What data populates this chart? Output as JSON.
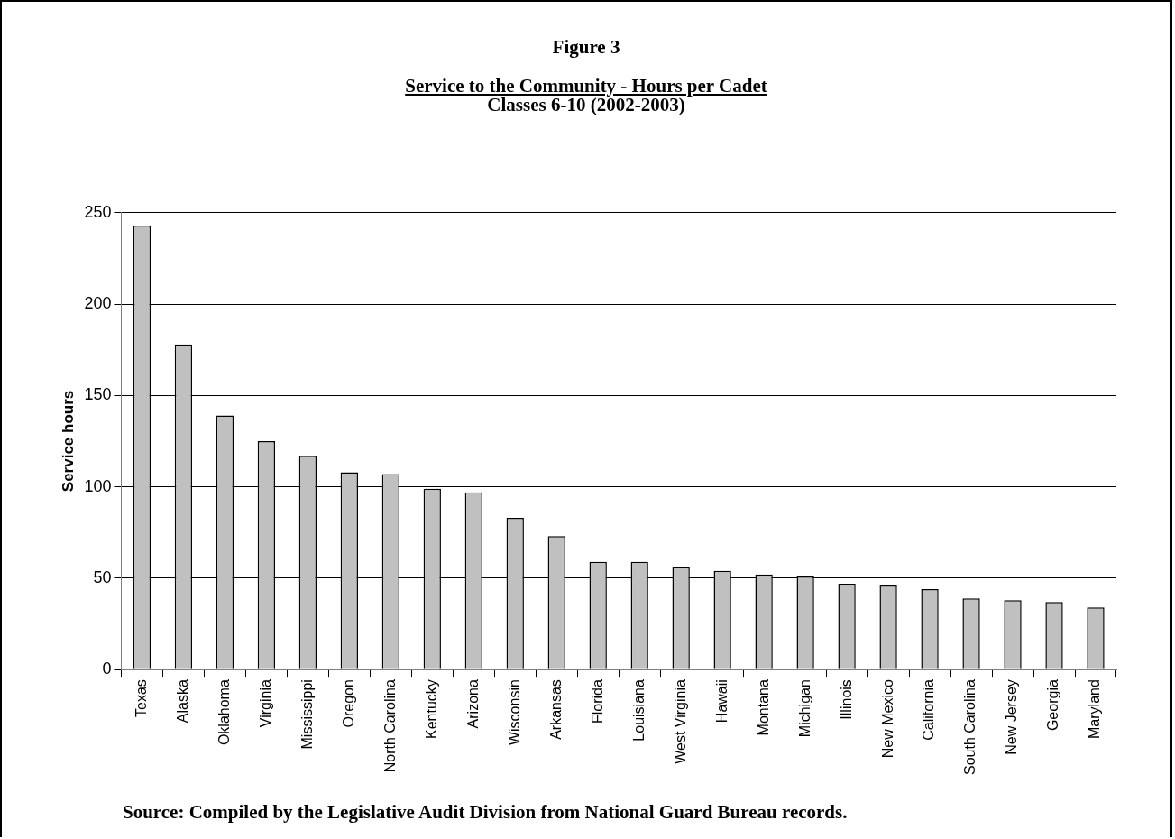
{
  "chart_data": {
    "type": "bar",
    "title": "Figure 3",
    "subtitle": "Service to the Community - Hours per Cadet",
    "annotations": [
      "Classes 6-10 (2002-2003)",
      "Source:  Compiled by the Legislative Audit Division from National Guard Bureau records."
    ],
    "ylabel": "Service hours",
    "categories": [
      "Texas",
      "Alaska",
      "Oklahoma",
      "Virginia",
      "Mississippi",
      "Oregon",
      "North Carolina",
      "Kentucky",
      "Arizona",
      "Wisconsin",
      "Arkansas",
      "Florida",
      "Louisiana",
      "West Virginia",
      "Hawaii",
      "Montana",
      "Michigan",
      "Illinois",
      "New Mexico",
      "California",
      "South Carolina",
      "New Jersey",
      "Georgia",
      "Maryland"
    ],
    "values": [
      243,
      178,
      139,
      125,
      117,
      108,
      107,
      99,
      97,
      83,
      73,
      59,
      59,
      56,
      54,
      52,
      51,
      47,
      46,
      44,
      39,
      38,
      37,
      34
    ],
    "color": "#c0c0c0",
    "ylim": [
      0,
      250
    ],
    "yticks": [
      0,
      50,
      100,
      150,
      200,
      250
    ],
    "grid": "y",
    "legend": false
  }
}
